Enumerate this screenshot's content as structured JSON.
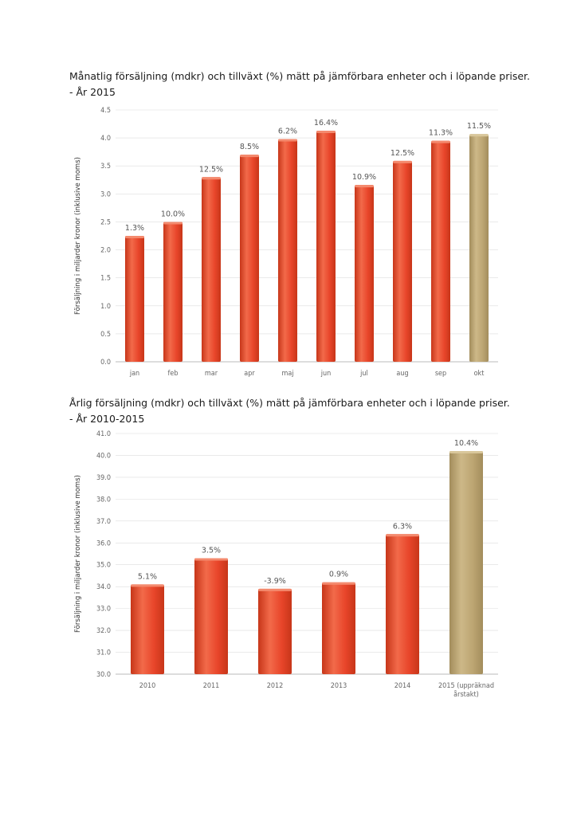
{
  "chart_data": [
    {
      "type": "bar",
      "title": "Månatlig försäljning (mdkr) och tillväxt (%) mätt på jämförbara enheter och i löpande priser.",
      "subtitle": "- År 2015",
      "ylabel": "Försäljning i miljarder kronor (inklusive moms)",
      "xlabel": "",
      "ylim": [
        0,
        4.5
      ],
      "yticks": [
        "0.0",
        "0.5",
        "1.0",
        "1.5",
        "2.0",
        "2.5",
        "3.0",
        "3.5",
        "4.0",
        "4.5"
      ],
      "categories": [
        "jan",
        "feb",
        "mar",
        "apr",
        "maj",
        "jun",
        "jul",
        "aug",
        "sep",
        "okt"
      ],
      "values": [
        2.25,
        2.5,
        3.3,
        3.7,
        3.98,
        4.13,
        3.16,
        3.59,
        3.95,
        4.07
      ],
      "data_labels": [
        "1.3%",
        "10.0%",
        "12.5%",
        "8.5%",
        "6.2%",
        "16.4%",
        "10.9%",
        "12.5%",
        "11.3%",
        "11.5%"
      ],
      "highlight_index": 9,
      "colors": {
        "bar": "#e8452a",
        "highlight": "#bca572",
        "grid": "#dddddd"
      }
    },
    {
      "type": "bar",
      "title": "Årlig försäljning (mdkr) och tillväxt (%) mätt på jämförbara enheter och i löpande priser.",
      "subtitle": "- År 2010-2015",
      "ylabel": "Försäljning i miljarder kronor (inklusive moms)",
      "xlabel": "",
      "ylim": [
        30,
        41
      ],
      "yticks": [
        "30.0",
        "31.0",
        "32.0",
        "33.0",
        "34.0",
        "35.0",
        "36.0",
        "37.0",
        "38.0",
        "39.0",
        "40.0",
        "41.0"
      ],
      "categories": [
        "2010",
        "2011",
        "2012",
        "2013",
        "2014",
        "2015 (uppräknad årstakt)"
      ],
      "values": [
        34.1,
        35.3,
        33.9,
        34.2,
        36.4,
        40.2
      ],
      "data_labels": [
        "5.1%",
        "3.5%",
        "-3.9%",
        "0.9%",
        "6.3%",
        "10.4%"
      ],
      "highlight_index": 5,
      "colors": {
        "bar": "#e8452a",
        "highlight": "#bca572",
        "grid": "#dddddd"
      }
    }
  ]
}
